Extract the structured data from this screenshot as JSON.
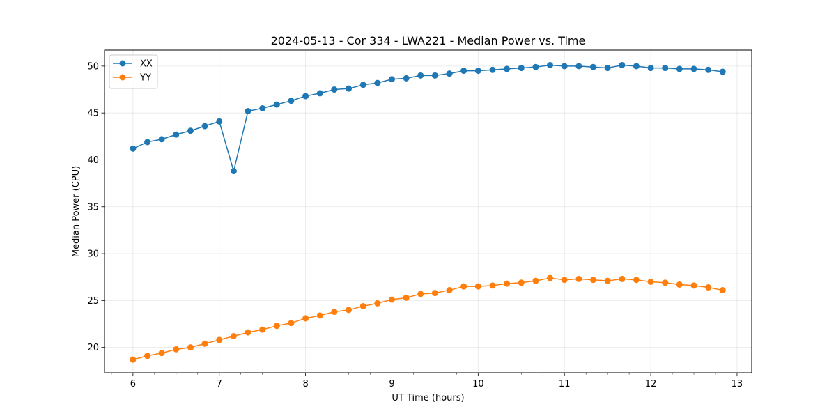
{
  "chart_data": {
    "type": "line",
    "title": "2024-05-13 - Cor 334 - LWA221 - Median Power vs. Time",
    "xlabel": "UT Time (hours)",
    "ylabel": "Median Power (CPU)",
    "xlim": [
      5.67,
      13.17
    ],
    "ylim": [
      17.3,
      51.7
    ],
    "xticks": [
      6,
      7,
      8,
      9,
      10,
      11,
      12,
      13
    ],
    "yticks": [
      20,
      25,
      30,
      35,
      40,
      45,
      50
    ],
    "grid": true,
    "legend_position": "top-left",
    "x": [
      6.0,
      6.167,
      6.333,
      6.5,
      6.667,
      6.833,
      7.0,
      7.167,
      7.333,
      7.5,
      7.667,
      7.833,
      8.0,
      8.167,
      8.333,
      8.5,
      8.667,
      8.833,
      9.0,
      9.167,
      9.333,
      9.5,
      9.667,
      9.833,
      10.0,
      10.167,
      10.333,
      10.5,
      10.667,
      10.833,
      11.0,
      11.167,
      11.333,
      11.5,
      11.667,
      11.833,
      12.0,
      12.167,
      12.333,
      12.5,
      12.667,
      12.833
    ],
    "series": [
      {
        "name": "XX",
        "color": "#1f77b4",
        "values": [
          41.2,
          41.9,
          42.2,
          42.7,
          43.1,
          43.6,
          44.1,
          38.8,
          45.2,
          45.5,
          45.9,
          46.3,
          46.8,
          47.1,
          47.5,
          47.6,
          48.0,
          48.2,
          48.6,
          48.7,
          49.0,
          49.0,
          49.2,
          49.5,
          49.5,
          49.6,
          49.7,
          49.8,
          49.9,
          50.1,
          50.0,
          50.0,
          49.9,
          49.8,
          50.1,
          50.0,
          49.8,
          49.8,
          49.7,
          49.7,
          49.6,
          49.4
        ]
      },
      {
        "name": "YY",
        "color": "#ff7f0e",
        "values": [
          18.7,
          19.1,
          19.4,
          19.8,
          20.0,
          20.4,
          20.8,
          21.2,
          21.6,
          21.9,
          22.3,
          22.6,
          23.1,
          23.4,
          23.8,
          24.0,
          24.4,
          24.7,
          25.1,
          25.3,
          25.7,
          25.8,
          26.1,
          26.5,
          26.5,
          26.6,
          26.8,
          26.9,
          27.1,
          27.4,
          27.2,
          27.3,
          27.2,
          27.1,
          27.3,
          27.2,
          27.0,
          26.9,
          26.7,
          26.6,
          26.4,
          26.1
        ]
      }
    ]
  }
}
